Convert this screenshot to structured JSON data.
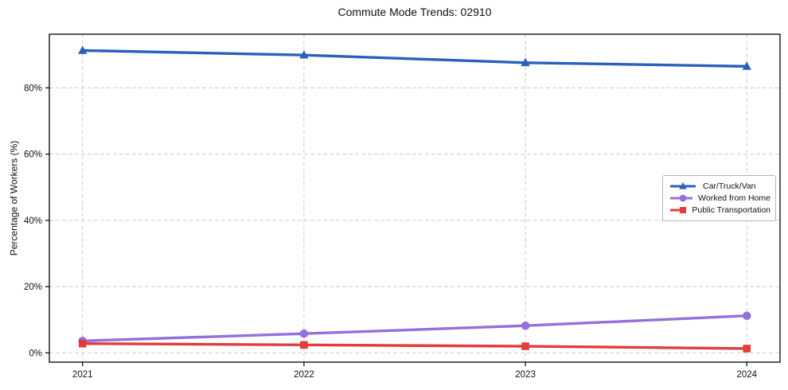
{
  "chart_data": {
    "type": "line",
    "title": "Commute Mode Trends: 02910",
    "xlabel": "",
    "ylabel": "Percentage of Workers (%)",
    "x": [
      2021,
      2022,
      2023,
      2024
    ],
    "x_tick_labels": [
      "2021",
      "2022",
      "2023",
      "2024"
    ],
    "series": [
      {
        "name": "Car/Truck/Van",
        "marker": "triangle",
        "color": "#2b5fbd",
        "values": [
          91.3,
          89.9,
          87.6,
          86.5
        ]
      },
      {
        "name": "Worked from Home",
        "marker": "circle",
        "color": "#9370db",
        "values": [
          3.6,
          5.8,
          8.2,
          11.2
        ]
      },
      {
        "name": "Public Transportation",
        "marker": "square",
        "color": "#e23c3c",
        "values": [
          2.8,
          2.4,
          2.0,
          1.3
        ]
      }
    ],
    "xlim": [
      2020.85,
      2024.15
    ],
    "ylim": [
      -2.8,
      96.2
    ],
    "yticks": [
      0,
      20,
      40,
      60,
      80
    ],
    "ytick_labels": [
      "0%",
      "20%",
      "40%",
      "60%",
      "80%"
    ],
    "grid": true,
    "grid_style": "dashed",
    "legend_position": "center right"
  },
  "colors": {
    "grid": "#cccccc",
    "spine": "#000000",
    "tick_text": "#111111",
    "background": "#ffffff"
  }
}
